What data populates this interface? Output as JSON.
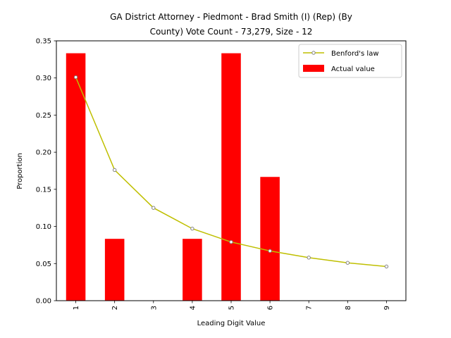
{
  "chart_data": {
    "type": "bar",
    "title_line1": "GA District Attorney - Piedmont - Brad Smith (I) (Rep) (By",
    "title_line2": "County) Vote Count - 73,279, Size - 12",
    "xlabel": "Leading Digit Value",
    "ylabel": "Proportion",
    "categories": [
      "1",
      "2",
      "3",
      "4",
      "5",
      "6",
      "7",
      "8",
      "9"
    ],
    "ylim": [
      0,
      0.35
    ],
    "yticks": [
      "0.00",
      "0.05",
      "0.10",
      "0.15",
      "0.20",
      "0.25",
      "0.30",
      "0.35"
    ],
    "grid": false,
    "legend_position": "top-right",
    "series": [
      {
        "name": "Benford's law",
        "type": "line",
        "color": "#bfbf00",
        "marker": "circle",
        "values": [
          0.301,
          0.176,
          0.125,
          0.097,
          0.079,
          0.067,
          0.058,
          0.051,
          0.046
        ]
      },
      {
        "name": "Actual value",
        "type": "bar",
        "color": "#ff0000",
        "values": [
          0.3333,
          0.0833,
          0,
          0.0833,
          0.3333,
          0.1667,
          0,
          0,
          0
        ]
      }
    ]
  }
}
